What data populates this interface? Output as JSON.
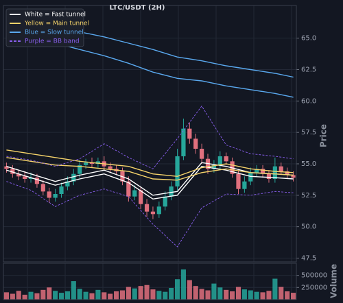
{
  "chart_data": {
    "type": "candlestick",
    "title": "LTC/USDT (2H)",
    "ylabel": "Price",
    "ylim": [
      47.2,
      67.6
    ],
    "yticks": [
      47.5,
      {
        "value": 50,
        "label": "50.0"
      },
      52.5,
      {
        "value": 55,
        "label": "55.0"
      },
      57.5,
      {
        "value": 60,
        "label": "60.0"
      },
      62.5,
      {
        "value": 65,
        "label": "65.0"
      }
    ],
    "grid": true,
    "up_color": "#26a69a",
    "down_color": "#e0707e",
    "open": [
      54.8,
      54.6,
      54.2,
      54.0,
      53.8,
      53.9,
      53.4,
      52.8,
      52.3,
      52.6,
      53.2,
      53.6,
      54.2,
      54.9,
      55.1,
      55.0,
      55.2,
      54.8,
      54.6,
      54.4,
      53.6,
      52.4,
      52.9,
      51.8,
      51.2,
      51.0,
      51.6,
      52.4,
      53.2,
      55.6,
      57.8,
      57.0,
      56.2,
      55.4,
      54.6,
      54.9,
      55.6,
      55.2,
      54.2,
      53.0,
      53.6,
      54.3,
      54.6,
      54.2,
      53.8,
      54.8,
      54.4,
      54.1
    ],
    "high": [
      55.1,
      54.9,
      54.5,
      54.4,
      54.3,
      54.2,
      53.7,
      53.1,
      53.0,
      53.5,
      54.0,
      54.6,
      55.3,
      55.4,
      55.5,
      55.5,
      55.6,
      55.1,
      54.9,
      54.7,
      54.0,
      53.3,
      53.2,
      52.2,
      51.6,
      52.0,
      52.8,
      53.6,
      56.2,
      58.6,
      58.3,
      57.4,
      56.6,
      55.8,
      55.3,
      56.0,
      55.9,
      55.5,
      54.5,
      54.0,
      54.7,
      54.9,
      54.9,
      54.5,
      55.5,
      55.1,
      54.7,
      54.4
    ],
    "low": [
      54.3,
      53.9,
      53.7,
      53.5,
      53.5,
      53.1,
      52.5,
      51.9,
      52.0,
      52.3,
      52.9,
      53.3,
      53.9,
      54.6,
      54.7,
      54.7,
      54.5,
      54.3,
      54.1,
      53.3,
      52.0,
      52.1,
      51.4,
      50.8,
      50.6,
      50.7,
      51.3,
      52.1,
      52.9,
      55.3,
      56.6,
      55.8,
      55.0,
      54.2,
      54.3,
      54.6,
      54.9,
      53.9,
      52.6,
      52.7,
      53.3,
      54.0,
      53.9,
      53.5,
      53.5,
      54.1,
      53.8,
      53.6
    ],
    "close": [
      54.6,
      54.2,
      54.0,
      53.8,
      53.9,
      53.4,
      52.8,
      52.3,
      52.6,
      53.2,
      53.6,
      54.2,
      54.9,
      55.1,
      55.0,
      55.2,
      54.8,
      54.6,
      54.4,
      53.6,
      52.4,
      52.9,
      51.8,
      51.2,
      51.0,
      51.6,
      52.4,
      53.2,
      55.6,
      57.8,
      57.0,
      56.2,
      55.4,
      54.6,
      54.9,
      55.6,
      55.2,
      54.2,
      53.0,
      53.6,
      54.3,
      54.6,
      54.2,
      53.8,
      54.8,
      54.4,
      54.1,
      53.9
    ],
    "series": [
      {
        "name": "White = Fast tunnel",
        "color": "#ffffff",
        "dashed": false,
        "x": [
          0,
          4,
          8,
          12,
          16,
          20,
          24,
          28,
          32,
          36,
          40,
          44,
          47
        ],
        "upper": [
          54.8,
          54.2,
          53.6,
          54.1,
          54.5,
          53.8,
          52.5,
          52.8,
          55.1,
          54.8,
          54.3,
          54.2,
          54.1
        ],
        "lower": [
          54.5,
          53.9,
          53.3,
          53.8,
          54.2,
          53.5,
          52.2,
          52.5,
          54.8,
          54.5,
          54.0,
          53.9,
          53.8
        ]
      },
      {
        "name": "Yellow = Main tunnel",
        "color": "#f5d36a",
        "dashed": false,
        "x": [
          0,
          4,
          8,
          12,
          16,
          20,
          24,
          28,
          32,
          36,
          40,
          44,
          47
        ],
        "upper": [
          56.1,
          55.8,
          55.5,
          55.2,
          55.0,
          54.8,
          54.2,
          54.0,
          54.7,
          55.0,
          54.6,
          54.4,
          54.3
        ],
        "lower": [
          55.5,
          55.2,
          54.9,
          54.8,
          54.6,
          54.4,
          53.8,
          53.7,
          54.3,
          54.6,
          54.3,
          54.2,
          54.1
        ]
      },
      {
        "name": "Blue = Slow tunnel",
        "color": "#5aa9ef",
        "dashed": false,
        "x": [
          0,
          4,
          8,
          12,
          16,
          20,
          24,
          28,
          32,
          36,
          40,
          44,
          47
        ],
        "upper": [
          66.6,
          66.3,
          65.9,
          65.5,
          65.1,
          64.6,
          64.1,
          63.5,
          63.2,
          62.8,
          62.5,
          62.2,
          61.9
        ],
        "lower": [
          65.8,
          65.2,
          64.6,
          64.1,
          63.6,
          63.0,
          62.3,
          61.8,
          61.6,
          61.2,
          60.9,
          60.6,
          60.3
        ]
      },
      {
        "name": "Purple = BB band",
        "color": "#8a5ff0",
        "dashed": true,
        "x": [
          0,
          4,
          8,
          12,
          16,
          20,
          24,
          28,
          32,
          36,
          40,
          44,
          47
        ],
        "upper": [
          55.6,
          55.3,
          54.8,
          55.4,
          56.6,
          55.5,
          54.6,
          57.0,
          59.6,
          56.5,
          55.8,
          55.6,
          55.4
        ],
        "lower": [
          53.6,
          52.9,
          51.6,
          52.5,
          53.0,
          52.4,
          50.2,
          48.4,
          51.5,
          52.6,
          52.5,
          52.8,
          52.7
        ]
      }
    ],
    "volume": {
      "ylabel": "Volume",
      "ylim": [
        0,
        720000
      ],
      "yticks": [
        250000,
        500000
      ],
      "values": [
        150000,
        120000,
        180000,
        100000,
        160000,
        130000,
        200000,
        250000,
        180000,
        140000,
        170000,
        380000,
        220000,
        160000,
        130000,
        200000,
        150000,
        120000,
        170000,
        190000,
        260000,
        230000,
        280000,
        300000,
        210000,
        180000,
        160000,
        240000,
        420000,
        620000,
        400000,
        280000,
        220000,
        190000,
        330000,
        250000,
        200000,
        170000,
        260000,
        210000,
        190000,
        160000,
        150000,
        180000,
        430000,
        260000,
        170000,
        140000
      ]
    }
  }
}
